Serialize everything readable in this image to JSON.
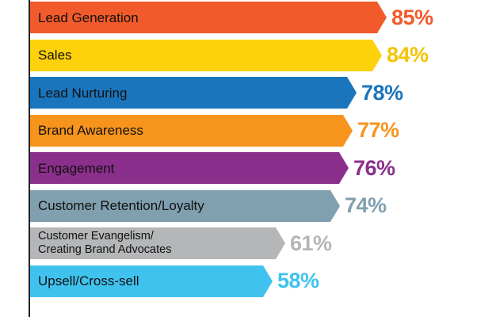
{
  "chart_data": {
    "type": "bar",
    "orientation": "horizontal",
    "categories": [
      "Lead Generation",
      "Sales",
      "Lead Nurturing",
      "Brand Awareness",
      "Engagement",
      "Customer Retention/Loyalty",
      "Customer Evangelism/\nCreating Brand Advocates",
      "Upsell/Cross-sell"
    ],
    "values": [
      85,
      84,
      78,
      77,
      76,
      74,
      61,
      58
    ],
    "value_labels": [
      "85%",
      "84%",
      "78%",
      "77%",
      "76%",
      "74%",
      "61%",
      "58%"
    ],
    "colors": [
      "#f15a2b",
      "#fdd20a",
      "#1b75bc",
      "#f7941d",
      "#8b2f8c",
      "#809faf",
      "#b4b6b8",
      "#3fc3ee"
    ],
    "value_colors": [
      "#f15a2b",
      "#f5c400",
      "#1b75bc",
      "#f7941d",
      "#8b2f8c",
      "#809faf",
      "#b4b6b8",
      "#3fc3ee"
    ],
    "xlim": [
      0,
      100
    ],
    "grid": false,
    "legend": "none"
  }
}
